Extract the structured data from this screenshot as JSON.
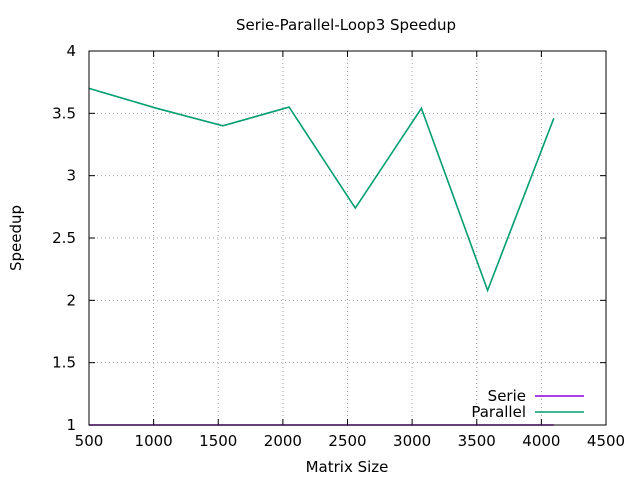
{
  "chart_data": {
    "type": "line",
    "title": "Serie-Parallel-Loop3 Speedup",
    "xlabel": "Matrix Size",
    "ylabel": "Speedup",
    "xlim": [
      500,
      4500
    ],
    "ylim": [
      1,
      4
    ],
    "x_ticks": [
      500,
      1000,
      1500,
      2000,
      2500,
      3000,
      3500,
      4000,
      4500
    ],
    "y_ticks": [
      1,
      1.5,
      2,
      2.5,
      3,
      3.5,
      4
    ],
    "x_tick_labels": [
      "500",
      "1000",
      "1500",
      "2000",
      "2500",
      "3000",
      "3500",
      "4000",
      "4500"
    ],
    "y_tick_labels": [
      "1",
      "1.5",
      "2",
      "2.5",
      "3",
      "3.5",
      "4"
    ],
    "grid": true,
    "legend_position": "bottom-right",
    "series": [
      {
        "name": "Serie",
        "color": "#9400d3",
        "x": [
          500,
          1000,
          1500,
          2000,
          2500,
          3000,
          3500,
          4096
        ],
        "y": [
          1,
          1,
          1,
          1,
          1,
          1,
          1,
          1
        ]
      },
      {
        "name": "Parallel",
        "color": "#009e73",
        "x": [
          500,
          1024,
          1536,
          2048,
          2560,
          3072,
          3584,
          4096
        ],
        "y": [
          3.7,
          3.54,
          3.4,
          3.55,
          2.74,
          3.54,
          2.08,
          3.46
        ]
      }
    ]
  }
}
